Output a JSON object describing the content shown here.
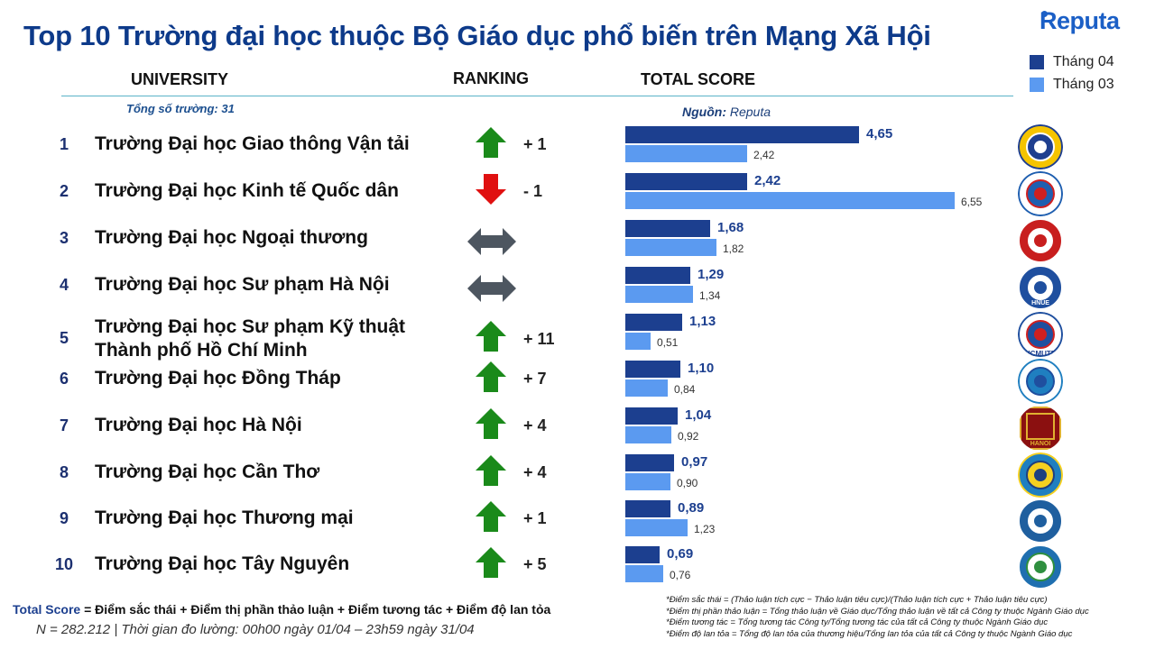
{
  "title": "Top 10 Trường đại học thuộc Bộ Giáo dục phổ biến trên Mạng Xã Hội",
  "brand": "Reputa",
  "columns": {
    "university": "UNIVERSITY",
    "ranking": "RANKING",
    "total_score": "TOTAL SCORE"
  },
  "total_schools_note": "Tổng số trường: 31",
  "source_label": "Nguồn:",
  "source_value": "Reputa",
  "colors": {
    "title": "#0d3a8a",
    "current": "#1c3f8f",
    "previous": "#5b9af0",
    "up": "#1a8a1a",
    "down": "#e01010",
    "neutral": "#4d5660"
  },
  "rows": [
    {
      "rank": "1",
      "name": [
        "Trường Đại học Giao thông Vận tải"
      ],
      "trend": "up",
      "delta": "+ 1",
      "seal": "utc-logo-icon"
    },
    {
      "rank": "2",
      "name": [
        "Trường Đại học Kinh tế Quốc dân"
      ],
      "trend": "down",
      "delta": "- 1",
      "seal": "neu-logo-icon"
    },
    {
      "rank": "3",
      "name": [
        "Trường Đại học Ngoại thương"
      ],
      "trend": "same",
      "delta": "",
      "seal": "ftu-logo-icon"
    },
    {
      "rank": "4",
      "name": [
        "Trường Đại học Sư phạm Hà Nội"
      ],
      "trend": "same",
      "delta": "",
      "seal": "hnue-logo-icon",
      "seal_text": "HNUE"
    },
    {
      "rank": "5",
      "name": [
        "Trường Đại học Sư phạm Kỹ thuật",
        "Thành phố Hồ Chí Minh"
      ],
      "trend": "up",
      "delta": "+ 11",
      "seal": "hcmute-logo-icon",
      "seal_text": "HCMUTE"
    },
    {
      "rank": "6",
      "name": [
        "Trường Đại học Đồng Tháp"
      ],
      "trend": "up",
      "delta": "+ 7",
      "seal": "dthu-logo-icon"
    },
    {
      "rank": "7",
      "name": [
        "Trường Đại học Hà Nội"
      ],
      "trend": "up",
      "delta": "+ 4",
      "seal": "hanu-logo-icon",
      "seal_text": "HANOI"
    },
    {
      "rank": "8",
      "name": [
        "Trường Đại học Cần Thơ"
      ],
      "trend": "up",
      "delta": "+ 4",
      "seal": "ctu-logo-icon"
    },
    {
      "rank": "9",
      "name": [
        "Trường Đại học Thương mại"
      ],
      "trend": "up",
      "delta": "+ 1",
      "seal": "tmu-logo-icon"
    },
    {
      "rank": "10",
      "name": [
        "Trường Đại học Tây Nguyên"
      ],
      "trend": "up",
      "delta": "+ 5",
      "seal": "ttn-logo-icon"
    }
  ],
  "chart_data": {
    "type": "bar",
    "orientation": "horizontal",
    "title": "TOTAL SCORE",
    "categories": [
      "Trường Đại học Giao thông Vận tải",
      "Trường Đại học Kinh tế Quốc dân",
      "Trường Đại học Ngoại thương",
      "Trường Đại học Sư phạm Hà Nội",
      "Trường Đại học Sư phạm Kỹ thuật Thành phố Hồ Chí Minh",
      "Trường Đại học Đồng Tháp",
      "Trường Đại học Hà Nội",
      "Trường Đại học Cần Thơ",
      "Trường Đại học Thương mại",
      "Trường Đại học Tây Nguyên"
    ],
    "series": [
      {
        "name": "Tháng 04",
        "values": [
          4.65,
          2.42,
          1.68,
          1.29,
          1.13,
          1.1,
          1.04,
          0.97,
          0.89,
          0.69
        ],
        "labels": [
          "4,65",
          "2,42",
          "1,68",
          "1,29",
          "1,13",
          "1,10",
          "1,04",
          "0,97",
          "0,89",
          "0,69"
        ],
        "color": "#1c3f8f"
      },
      {
        "name": "Tháng 03",
        "values": [
          2.42,
          6.55,
          1.82,
          1.34,
          0.51,
          0.84,
          0.92,
          0.9,
          1.23,
          0.76
        ],
        "labels": [
          "2,42",
          "6,55",
          "1,82",
          "1,34",
          "0,51",
          "0,84",
          "0,92",
          "0,90",
          "1,23",
          "0,76"
        ],
        "color": "#5b9af0"
      }
    ],
    "xlim": [
      0,
      6.55
    ],
    "grid": false,
    "legend": "top-right"
  },
  "footer": {
    "formula_term": "Total Score",
    "formula_rest": " = Điểm  sắc thái + Điểm thị phần thảo luận + Điểm tương tác + Điểm độ lan tỏa",
    "sample": "N = 282.212 | Thời gian đo lường: 00h00 ngày 01/04 – 23h59 ngày 31/04",
    "notes": [
      "*Điểm sắc thái = (Thảo luận tích cực − Thảo luận tiêu cực)/(Thảo luận tích cực + Thảo luận tiêu cực)",
      "*Điểm thị phần thảo luận = Tổng thảo luận về Giáo dục/Tổng thảo luận về tất cả Công ty thuộc Ngành Giáo dục",
      "*Điểm tương tác = Tổng tương tác Công ty/Tổng tương tác của tất cả Công ty thuộc Ngành Giáo dục",
      "*Điểm độ lan tỏa = Tổng độ lan tỏa của thương hiệu/Tổng lan tỏa của tất cả Công ty thuộc Ngành Giáo dục"
    ]
  }
}
